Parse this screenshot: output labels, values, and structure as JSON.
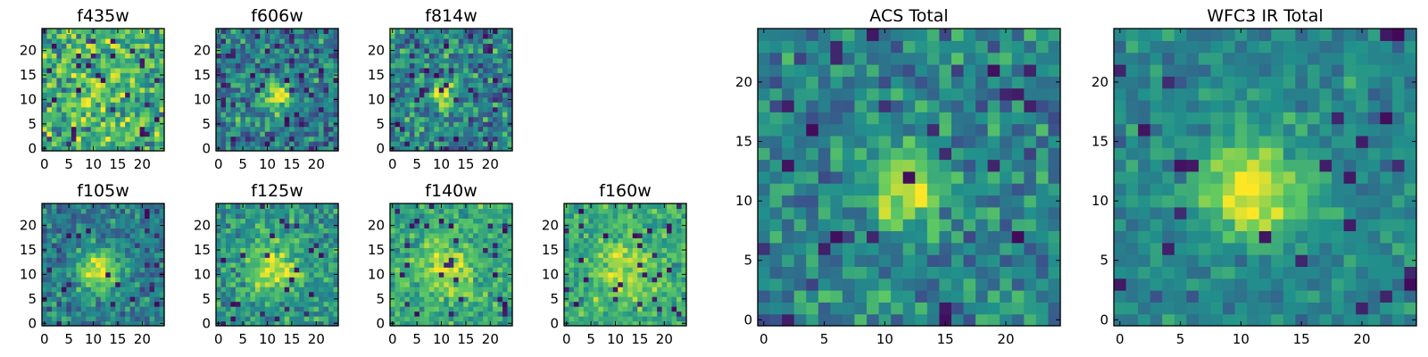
{
  "figure": {
    "colormap": "viridis",
    "colormap_stops": [
      "#440154",
      "#3b528b",
      "#21918c",
      "#5ec962",
      "#fde725"
    ]
  },
  "chart_data": [
    {
      "type": "heatmap",
      "title": "f435w",
      "grid_size": 25,
      "xlim": [
        -0.5,
        24.5
      ],
      "ylim": [
        -0.5,
        24.5
      ],
      "xticks": [
        0,
        5,
        10,
        15,
        20
      ],
      "yticks": [
        0,
        5,
        10,
        15,
        20
      ],
      "source_center": [
        11,
        11
      ],
      "source_peak": 0.18,
      "source_width": 3.0,
      "noise_amplitude": 0.35,
      "background": 0.62,
      "seed": 11
    },
    {
      "type": "heatmap",
      "title": "f606w",
      "grid_size": 25,
      "xlim": [
        -0.5,
        24.5
      ],
      "ylim": [
        -0.5,
        24.5
      ],
      "xticks": [
        0,
        5,
        10,
        15,
        20
      ],
      "yticks": [
        0,
        5,
        10,
        15,
        20
      ],
      "source_center": [
        12,
        11
      ],
      "source_peak": 0.55,
      "source_width": 2.2,
      "noise_amplitude": 0.28,
      "background": 0.42,
      "seed": 22
    },
    {
      "type": "heatmap",
      "title": "f814w",
      "grid_size": 25,
      "xlim": [
        -0.5,
        24.5
      ],
      "ylim": [
        -0.5,
        24.5
      ],
      "xticks": [
        0,
        5,
        10,
        15,
        20
      ],
      "yticks": [
        0,
        5,
        10,
        15,
        20
      ],
      "source_center": [
        11,
        11
      ],
      "source_peak": 0.5,
      "source_width": 2.0,
      "noise_amplitude": 0.3,
      "background": 0.44,
      "seed": 33
    },
    {
      "type": "heatmap",
      "title": "f105w",
      "grid_size": 25,
      "xlim": [
        -0.5,
        24.5
      ],
      "ylim": [
        -0.5,
        24.5
      ],
      "xticks": [
        0,
        5,
        10,
        15,
        20
      ],
      "yticks": [
        0,
        5,
        10,
        15,
        20
      ],
      "source_center": [
        11,
        11
      ],
      "source_peak": 0.5,
      "source_width": 3.2,
      "noise_amplitude": 0.22,
      "background": 0.42,
      "seed": 44
    },
    {
      "type": "heatmap",
      "title": "f125w",
      "grid_size": 25,
      "xlim": [
        -0.5,
        24.5
      ],
      "ylim": [
        -0.5,
        24.5
      ],
      "xticks": [
        0,
        5,
        10,
        15,
        20
      ],
      "yticks": [
        0,
        5,
        10,
        15,
        20
      ],
      "source_center": [
        11,
        11
      ],
      "source_peak": 0.4,
      "source_width": 3.6,
      "noise_amplitude": 0.22,
      "background": 0.52,
      "seed": 55
    },
    {
      "type": "heatmap",
      "title": "f140w",
      "grid_size": 25,
      "xlim": [
        -0.5,
        24.5
      ],
      "ylim": [
        -0.5,
        24.5
      ],
      "xticks": [
        0,
        5,
        10,
        15,
        20
      ],
      "yticks": [
        0,
        5,
        10,
        15,
        20
      ],
      "source_center": [
        11,
        11
      ],
      "source_peak": 0.32,
      "source_width": 4.0,
      "noise_amplitude": 0.2,
      "background": 0.6,
      "seed": 66
    },
    {
      "type": "heatmap",
      "title": "f160w",
      "grid_size": 25,
      "xlim": [
        -0.5,
        24.5
      ],
      "ylim": [
        -0.5,
        24.5
      ],
      "xticks": [
        0,
        5,
        10,
        15,
        20
      ],
      "yticks": [
        0,
        5,
        10,
        15,
        20
      ],
      "source_center": [
        12,
        11
      ],
      "source_peak": 0.32,
      "source_width": 4.0,
      "noise_amplitude": 0.2,
      "background": 0.6,
      "seed": 77
    },
    {
      "type": "heatmap",
      "title": "ACS Total",
      "grid_size": 25,
      "xlim": [
        -0.5,
        24.5
      ],
      "ylim": [
        -0.5,
        24.5
      ],
      "xticks": [
        0,
        5,
        10,
        15,
        20
      ],
      "yticks": [
        0,
        5,
        10,
        15,
        20
      ],
      "source_center": [
        12,
        11
      ],
      "source_peak": 0.55,
      "source_width": 2.1,
      "noise_amplitude": 0.24,
      "background": 0.44,
      "seed": 88
    },
    {
      "type": "heatmap",
      "title": "WFC3 IR Total",
      "grid_size": 25,
      "xlim": [
        -0.5,
        24.5
      ],
      "ylim": [
        -0.5,
        24.5
      ],
      "xticks": [
        0,
        5,
        10,
        15,
        20
      ],
      "yticks": [
        0,
        5,
        10,
        15,
        20
      ],
      "source_center": [
        11,
        11
      ],
      "source_peak": 0.5,
      "source_width": 3.2,
      "noise_amplitude": 0.16,
      "background": 0.46,
      "seed": 99
    }
  ]
}
